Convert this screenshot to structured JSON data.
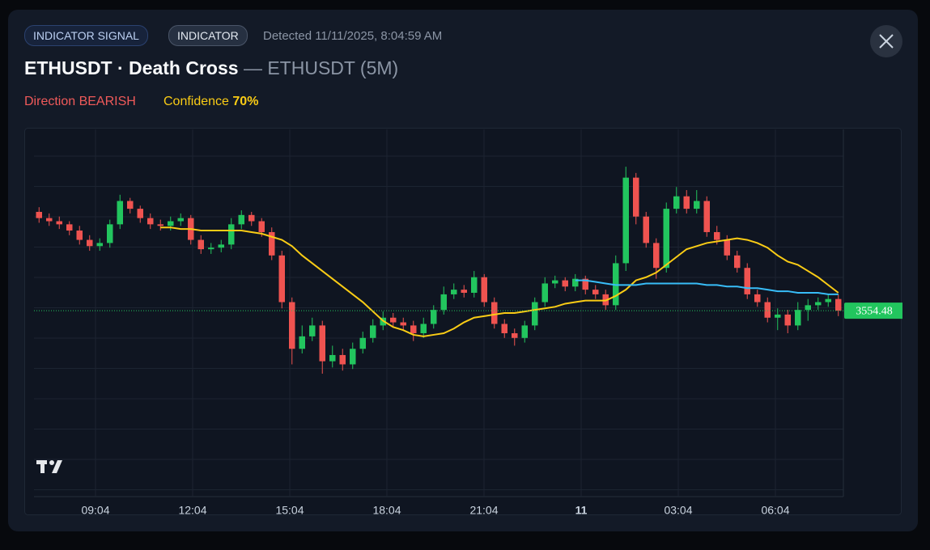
{
  "header": {
    "badges": [
      "INDICATOR SIGNAL",
      "INDICATOR"
    ],
    "detected": "Detected 11/11/2025, 8:04:59 AM",
    "title": "ETHUSDT · Death Cross",
    "subtitle": "— ETHUSDT (5M)",
    "direction": "Direction BEARISH",
    "confidence_label": "Confidence",
    "confidence_value": "70%"
  },
  "chart_data": {
    "type": "candlestick",
    "open": [
      3618,
      3614,
      3612,
      3610,
      3606,
      3600,
      3596,
      3598,
      3610,
      3625,
      3620,
      3614,
      3610,
      3609,
      3612,
      3614,
      3600,
      3594,
      3595,
      3597,
      3610,
      3616,
      3612,
      3605,
      3590,
      3560,
      3530,
      3538,
      3545,
      3522,
      3526,
      3520,
      3530,
      3537,
      3545,
      3550,
      3547,
      3545,
      3540,
      3546,
      3555,
      3565,
      3568,
      3566,
      3576,
      3560,
      3546,
      3540,
      3537,
      3545,
      3560,
      3572,
      3574,
      3570,
      3575,
      3568,
      3565,
      3558,
      3585,
      3640,
      3615,
      3598,
      3582,
      3620,
      3628,
      3620,
      3625,
      3605,
      3600,
      3590,
      3582,
      3565,
      3560,
      3550,
      3552,
      3545,
      3555,
      3558,
      3560,
      3562
    ],
    "high": [
      3621,
      3617,
      3615,
      3612,
      3609,
      3603,
      3601,
      3613,
      3629,
      3627,
      3622,
      3617,
      3613,
      3615,
      3617,
      3616,
      3603,
      3598,
      3600,
      3614,
      3619,
      3618,
      3614,
      3608,
      3593,
      3563,
      3545,
      3550,
      3548,
      3532,
      3530,
      3534,
      3541,
      3549,
      3554,
      3553,
      3550,
      3548,
      3550,
      3558,
      3570,
      3572,
      3571,
      3580,
      3578,
      3563,
      3549,
      3543,
      3548,
      3563,
      3576,
      3577,
      3576,
      3578,
      3577,
      3571,
      3568,
      3590,
      3647,
      3643,
      3618,
      3601,
      3624,
      3634,
      3632,
      3632,
      3628,
      3609,
      3603,
      3593,
      3585,
      3568,
      3563,
      3556,
      3555,
      3560,
      3562,
      3563,
      3565,
      3565
    ],
    "low": [
      3611,
      3609,
      3607,
      3603,
      3597,
      3593,
      3593,
      3595,
      3607,
      3617,
      3611,
      3607,
      3606,
      3606,
      3609,
      3597,
      3591,
      3591,
      3592,
      3594,
      3607,
      3609,
      3602,
      3587,
      3556,
      3520,
      3527,
      3535,
      3514,
      3518,
      3516,
      3517,
      3527,
      3534,
      3542,
      3544,
      3542,
      3535,
      3537,
      3543,
      3552,
      3562,
      3563,
      3563,
      3557,
      3543,
      3537,
      3532,
      3534,
      3542,
      3557,
      3569,
      3567,
      3567,
      3565,
      3562,
      3555,
      3555,
      3580,
      3610,
      3595,
      3575,
      3579,
      3617,
      3617,
      3617,
      3602,
      3597,
      3587,
      3579,
      3562,
      3557,
      3547,
      3542,
      3540,
      3542,
      3548,
      3555,
      3557,
      3551
    ],
    "close": [
      3614,
      3612,
      3610,
      3606,
      3600,
      3596,
      3598,
      3610,
      3625,
      3620,
      3614,
      3610,
      3609,
      3612,
      3614,
      3600,
      3594,
      3595,
      3597,
      3610,
      3616,
      3612,
      3605,
      3590,
      3560,
      3530,
      3538,
      3545,
      3522,
      3526,
      3520,
      3530,
      3537,
      3545,
      3550,
      3547,
      3545,
      3540,
      3546,
      3555,
      3565,
      3568,
      3566,
      3576,
      3560,
      3546,
      3540,
      3537,
      3545,
      3560,
      3572,
      3574,
      3570,
      3575,
      3568,
      3565,
      3558,
      3585,
      3640,
      3615,
      3598,
      3582,
      3620,
      3628,
      3620,
      3625,
      3605,
      3600,
      3590,
      3582,
      3565,
      3560,
      3550,
      3552,
      3545,
      3555,
      3558,
      3560,
      3562,
      3554.48
    ],
    "up_color": "#22c55e",
    "down_color": "#ef5350",
    "series": [
      {
        "color": "#facc15",
        "values": [
          null,
          null,
          null,
          null,
          null,
          null,
          null,
          null,
          null,
          null,
          null,
          null,
          3608,
          3608,
          3607,
          3607,
          3606,
          3606,
          3606,
          3606,
          3606,
          3605,
          3604,
          3602,
          3600,
          3596,
          3590,
          3585,
          3580,
          3575,
          3570,
          3565,
          3560,
          3554,
          3548,
          3544,
          3542,
          3539,
          3538,
          3539,
          3540,
          3543,
          3547,
          3550,
          3551,
          3552,
          3553,
          3553,
          3554,
          3555,
          3556,
          3557,
          3559,
          3560,
          3561,
          3561,
          3561,
          3564,
          3568,
          3574,
          3576,
          3579,
          3584,
          3589,
          3594,
          3596,
          3598,
          3599,
          3600,
          3601,
          3600,
          3598,
          3595,
          3590,
          3586,
          3584,
          3580,
          3576,
          3571,
          3566
        ]
      },
      {
        "color": "#38bdf8",
        "values": [
          null,
          null,
          null,
          null,
          null,
          null,
          null,
          null,
          null,
          null,
          null,
          null,
          null,
          null,
          null,
          null,
          null,
          null,
          null,
          null,
          null,
          null,
          null,
          null,
          null,
          null,
          null,
          null,
          null,
          null,
          null,
          null,
          null,
          null,
          null,
          null,
          null,
          null,
          null,
          null,
          null,
          null,
          null,
          null,
          null,
          null,
          null,
          null,
          null,
          null,
          null,
          null,
          null,
          3574,
          3574,
          3573,
          3572,
          3571,
          3571,
          3571,
          3572,
          3572,
          3572,
          3572,
          3572,
          3572,
          3571,
          3571,
          3570,
          3570,
          3569,
          3569,
          3568,
          3567,
          3567,
          3566,
          3566,
          3566,
          3565,
          3565
        ]
      }
    ],
    "last_price": 3554.48,
    "ylim": [
      3435,
      3671
    ],
    "xlim": [
      0,
      80
    ],
    "xticks": [
      {
        "value": 6.08,
        "label": "09:04"
      },
      {
        "value": 15.68,
        "label": "12:04"
      },
      {
        "value": 25.28,
        "label": "15:04"
      },
      {
        "value": 34.88,
        "label": "18:04"
      },
      {
        "value": 44.48,
        "label": "21:04"
      },
      {
        "value": 54.08,
        "label": "11"
      },
      {
        "value": 63.68,
        "label": "03:04"
      },
      {
        "value": 73.28,
        "label": "06:04"
      }
    ]
  }
}
